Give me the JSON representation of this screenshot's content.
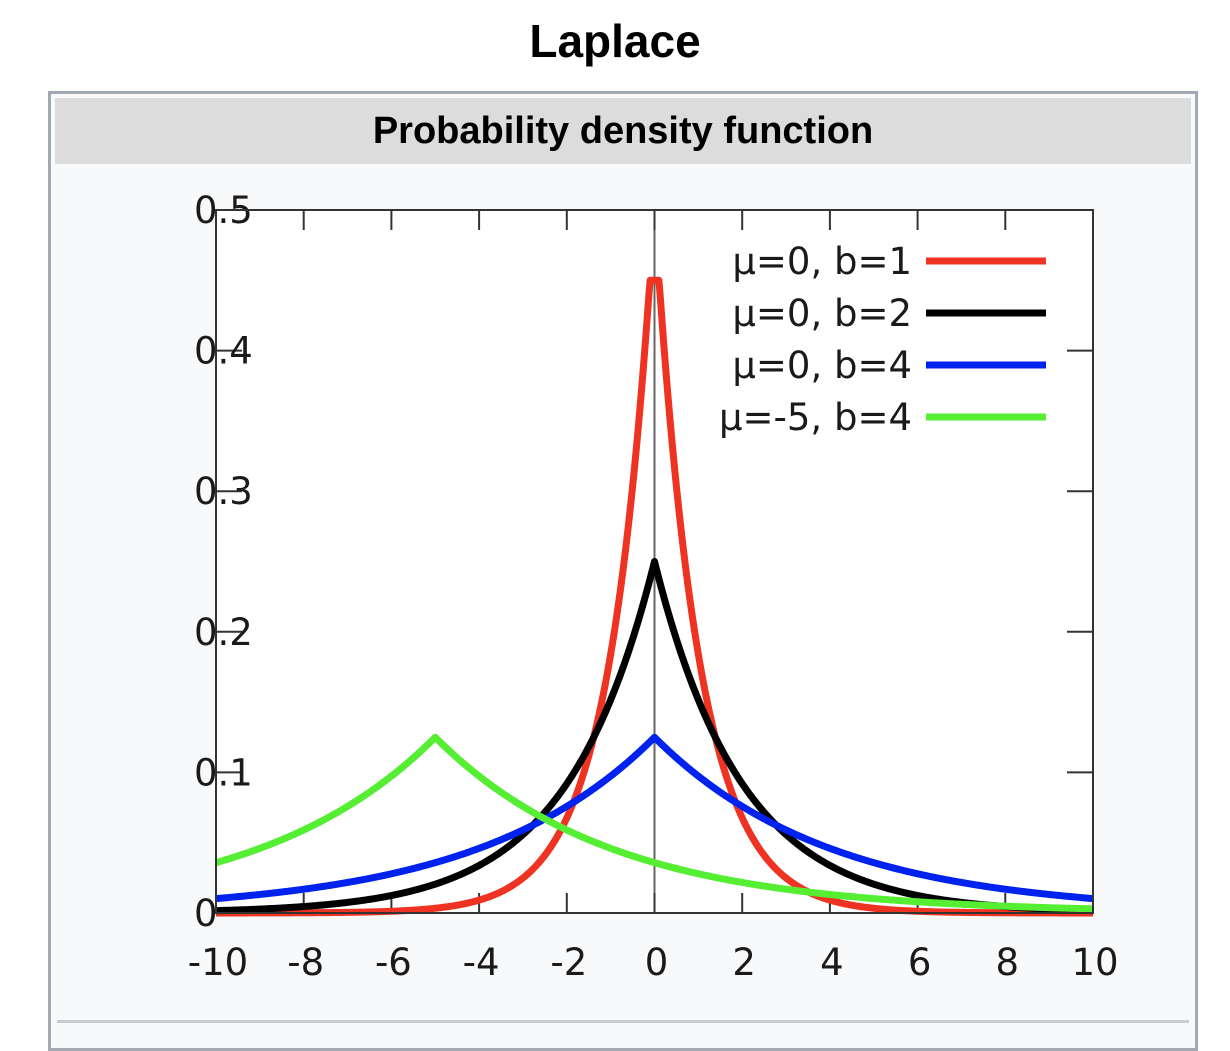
{
  "page": {
    "title": "Laplace"
  },
  "infobox": {
    "header": "Probability density function"
  },
  "chart_data": {
    "type": "line",
    "title": "",
    "xlabel": "",
    "ylabel": "",
    "xlim": [
      -10,
      10
    ],
    "ylim": [
      0,
      0.5
    ],
    "x_ticks": [
      -10,
      -8,
      -6,
      -4,
      -2,
      0,
      2,
      4,
      6,
      8,
      10
    ],
    "y_ticks": [
      0,
      0.1,
      0.2,
      0.3,
      0.4,
      0.5
    ],
    "x_tick_labels": [
      "-10",
      "-8",
      "-6",
      "-4",
      "-2",
      "0",
      "2",
      "4",
      "6",
      "8",
      "10"
    ],
    "y_tick_labels": [
      "0",
      "0.1",
      "0.2",
      "0.3",
      "0.4",
      "0.5"
    ],
    "grid": false,
    "zero_axis_line": true,
    "legend_position": "top-right",
    "series": [
      {
        "name": "μ=0, b=1",
        "mu": 0,
        "b": 1,
        "color": "#ee3322",
        "x": [
          -10,
          -8,
          -6,
          -4,
          -3,
          -2,
          -1.5,
          -1,
          -0.5,
          0,
          0.5,
          1,
          1.5,
          2,
          3,
          4,
          6,
          8,
          10
        ],
        "values": [
          0.0,
          0.0002,
          0.0012,
          0.0092,
          0.0249,
          0.0677,
          0.1116,
          0.1839,
          0.3033,
          0.5,
          0.3033,
          0.1839,
          0.1116,
          0.0677,
          0.0249,
          0.0092,
          0.0012,
          0.0002,
          0.0
        ]
      },
      {
        "name": "μ=0, b=2",
        "mu": 0,
        "b": 2,
        "color": "#000000",
        "x": [
          -10,
          -8,
          -6,
          -4,
          -3,
          -2,
          -1.5,
          -1,
          -0.5,
          0,
          0.5,
          1,
          1.5,
          2,
          3,
          4,
          6,
          8,
          10
        ],
        "values": [
          0.0017,
          0.0046,
          0.0124,
          0.0338,
          0.0558,
          0.092,
          0.1181,
          0.1516,
          0.1947,
          0.25,
          0.1947,
          0.1516,
          0.1181,
          0.092,
          0.0558,
          0.0338,
          0.0124,
          0.0046,
          0.0017
        ]
      },
      {
        "name": "μ=0, b=4",
        "mu": 0,
        "b": 4,
        "color": "#0022ee",
        "x": [
          -10,
          -8,
          -6,
          -4,
          -2,
          0,
          2,
          4,
          6,
          8,
          10
        ],
        "values": [
          0.0103,
          0.0169,
          0.0279,
          0.046,
          0.0758,
          0.125,
          0.0758,
          0.046,
          0.0279,
          0.0169,
          0.0103
        ]
      },
      {
        "name": "μ=-5, b=4",
        "mu": -5,
        "b": 4,
        "color": "#55ee33",
        "x": [
          -10,
          -9,
          -8,
          -7,
          -6,
          -5,
          -4,
          -2,
          0,
          2,
          4,
          6,
          8,
          10
        ],
        "values": [
          0.0358,
          0.046,
          0.059,
          0.0758,
          0.0974,
          0.125,
          0.0974,
          0.059,
          0.0358,
          0.0217,
          0.0132,
          0.008,
          0.0048,
          0.0029
        ]
      }
    ]
  }
}
